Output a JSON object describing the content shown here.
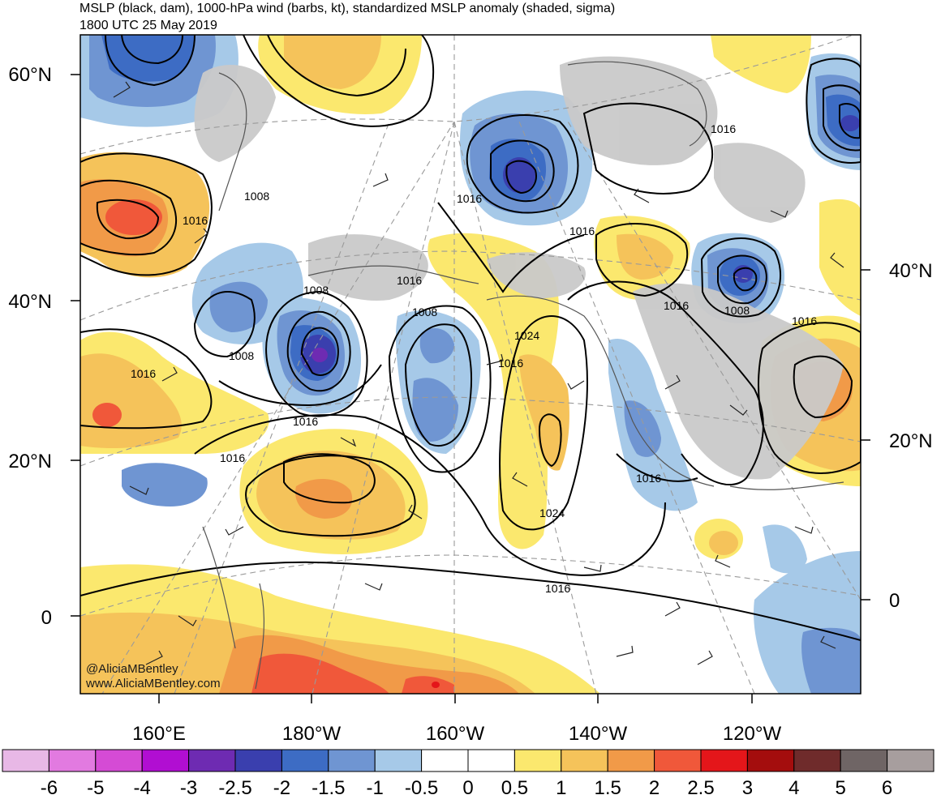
{
  "title": {
    "line1": "MSLP (black, dam), 1000-hPa wind (barbs, kt), standardized MSLP anomaly (shaded, sigma)",
    "line2": "1800 UTC 25 May 2019"
  },
  "credit": {
    "handle": "@AliciaMBentley",
    "site": "www.AliciaMBentley.com"
  },
  "axes": {
    "left_lat": [
      "60°N",
      "40°N",
      "20°N",
      "0"
    ],
    "right_lat": [
      "40°N",
      "20°N",
      "0"
    ],
    "bottom_lon": [
      "160°E",
      "180°W",
      "160°W",
      "140°W",
      "120°W"
    ]
  },
  "isobar_labels": [
    "1008",
    "1016",
    "1016",
    "1008",
    "1016",
    "1016",
    "1008",
    "1008",
    "1016",
    "1016",
    "1024",
    "1016",
    "1016",
    "1016",
    "1008",
    "1016",
    "1016",
    "1016",
    "1024",
    "1016"
  ],
  "colorbar": {
    "colors": [
      "#e8b8e6",
      "#e27ae0",
      "#d54bd5",
      "#b10ed2",
      "#6e2bb2",
      "#3a3fae",
      "#3d6cc4",
      "#6f95d2",
      "#a6c9e8",
      "#ffffff",
      "#ffffff",
      "#fbe86e",
      "#f5c35a",
      "#f19a48",
      "#f0583a",
      "#e4161a",
      "#a40d0d",
      "#6f2b2b",
      "#6f6565",
      "#a79e9e"
    ],
    "tick_labels": [
      "-6",
      "-5",
      "-4",
      "-3",
      "-2.5",
      "-2",
      "-1.5",
      "-1",
      "-0.5",
      "0",
      "0.5",
      "1",
      "1.5",
      "2",
      "2.5",
      "3",
      "4",
      "5",
      "6"
    ]
  }
}
